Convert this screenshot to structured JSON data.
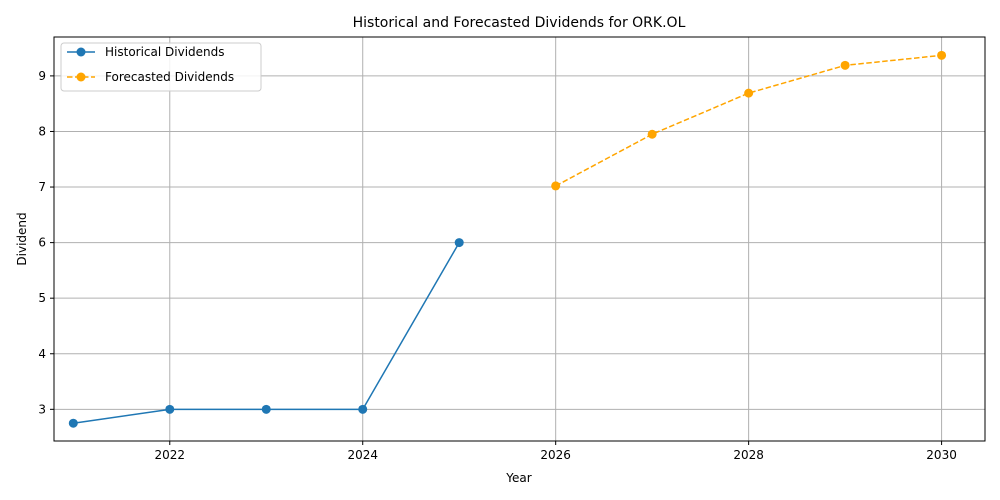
{
  "chart_data": {
    "type": "line",
    "title": "Historical and Forecasted Dividends for ORK.OL",
    "xlabel": "Year",
    "ylabel": "Dividend",
    "xlim": [
      2020.8,
      2030.45
    ],
    "ylim": [
      2.43,
      9.7
    ],
    "grid": true,
    "legend_position": "top-left",
    "x_ticks": [
      2022,
      2024,
      2026,
      2028,
      2030
    ],
    "x_tick_labels": [
      "2022",
      "2024",
      "2026",
      "2028",
      "2030"
    ],
    "y_ticks": [
      3,
      4,
      5,
      6,
      7,
      8,
      9
    ],
    "y_tick_labels": [
      "3",
      "4",
      "5",
      "6",
      "7",
      "8",
      "9"
    ],
    "series": [
      {
        "name": "Historical Dividends",
        "color": "#1f77b4",
        "style": "solid",
        "x": [
          2021,
          2022,
          2023,
          2024,
          2025
        ],
        "values": [
          2.75,
          3.0,
          3.0,
          3.0,
          6.0
        ]
      },
      {
        "name": "Forecasted Dividends",
        "color": "#ffa500",
        "style": "dashed",
        "x": [
          2026,
          2027,
          2028,
          2029,
          2030
        ],
        "values": [
          7.02,
          7.95,
          8.69,
          9.19,
          9.37
        ]
      }
    ]
  }
}
